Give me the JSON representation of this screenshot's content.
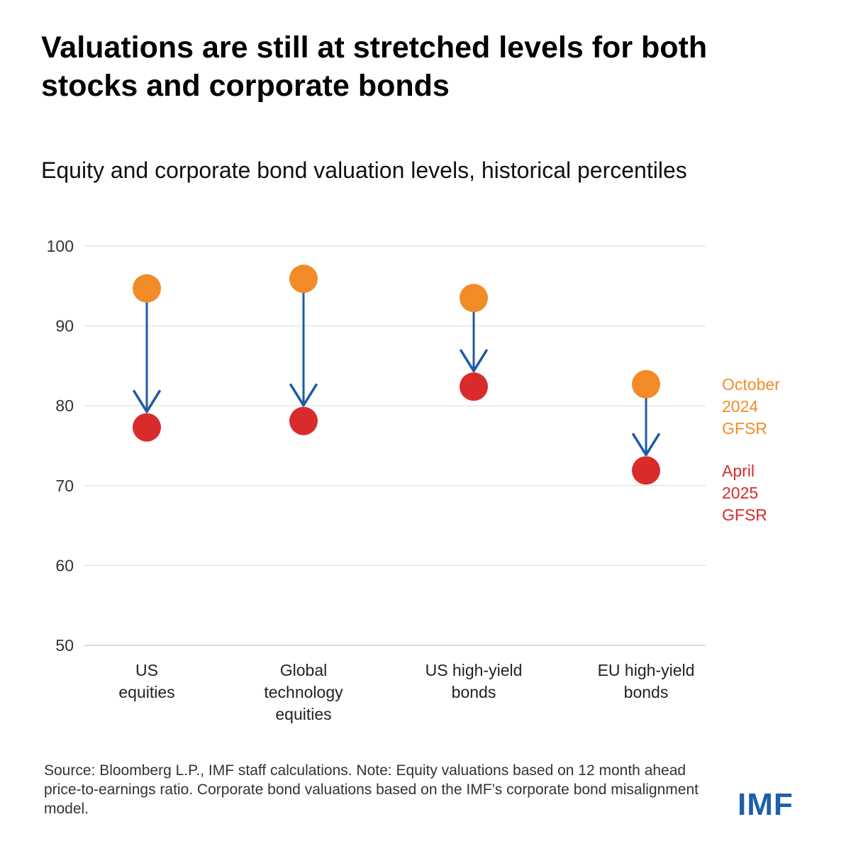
{
  "title": "Valuations are still at stretched levels for both stocks and corporate bonds",
  "subtitle": "Equity and corporate bond valuation levels, historical percentiles",
  "source": "Source: Bloomberg L.P., IMF staff calculations. Note: Equity valuations based on 12 month ahead price-to-earnings ratio. Corporate bond valuations based on the IMF’s corporate bond misalignment model.",
  "logo": "IMF",
  "colors": {
    "october": "#f28c28",
    "april": "#d92b2b",
    "arrow": "#1f5aa6",
    "grid": "#d9d9d9"
  },
  "chart_data": {
    "type": "scatter",
    "title": "Equity and corporate bond valuation levels, historical percentiles",
    "xlabel": "",
    "ylabel": "",
    "ylim": [
      50,
      100
    ],
    "yticks": [
      50,
      60,
      70,
      80,
      90,
      100
    ],
    "grid": true,
    "legend_position": "right",
    "categories": [
      [
        "US",
        "equities"
      ],
      [
        "Global",
        "technology",
        "equities"
      ],
      [
        "US high-yield",
        "bonds"
      ],
      [
        "EU high-yield",
        "bonds"
      ]
    ],
    "series": [
      {
        "name": "October 2024 GFSR",
        "legend_lines": [
          "October",
          "2024",
          "GFSR"
        ],
        "color": "#f28c28",
        "values": [
          94.7,
          95.9,
          93.5,
          82.7
        ]
      },
      {
        "name": "April 2025 GFSR",
        "legend_lines": [
          "April",
          "2025",
          "GFSR"
        ],
        "color": "#d92b2b",
        "values": [
          77.3,
          78.1,
          82.4,
          71.9
        ]
      }
    ]
  }
}
